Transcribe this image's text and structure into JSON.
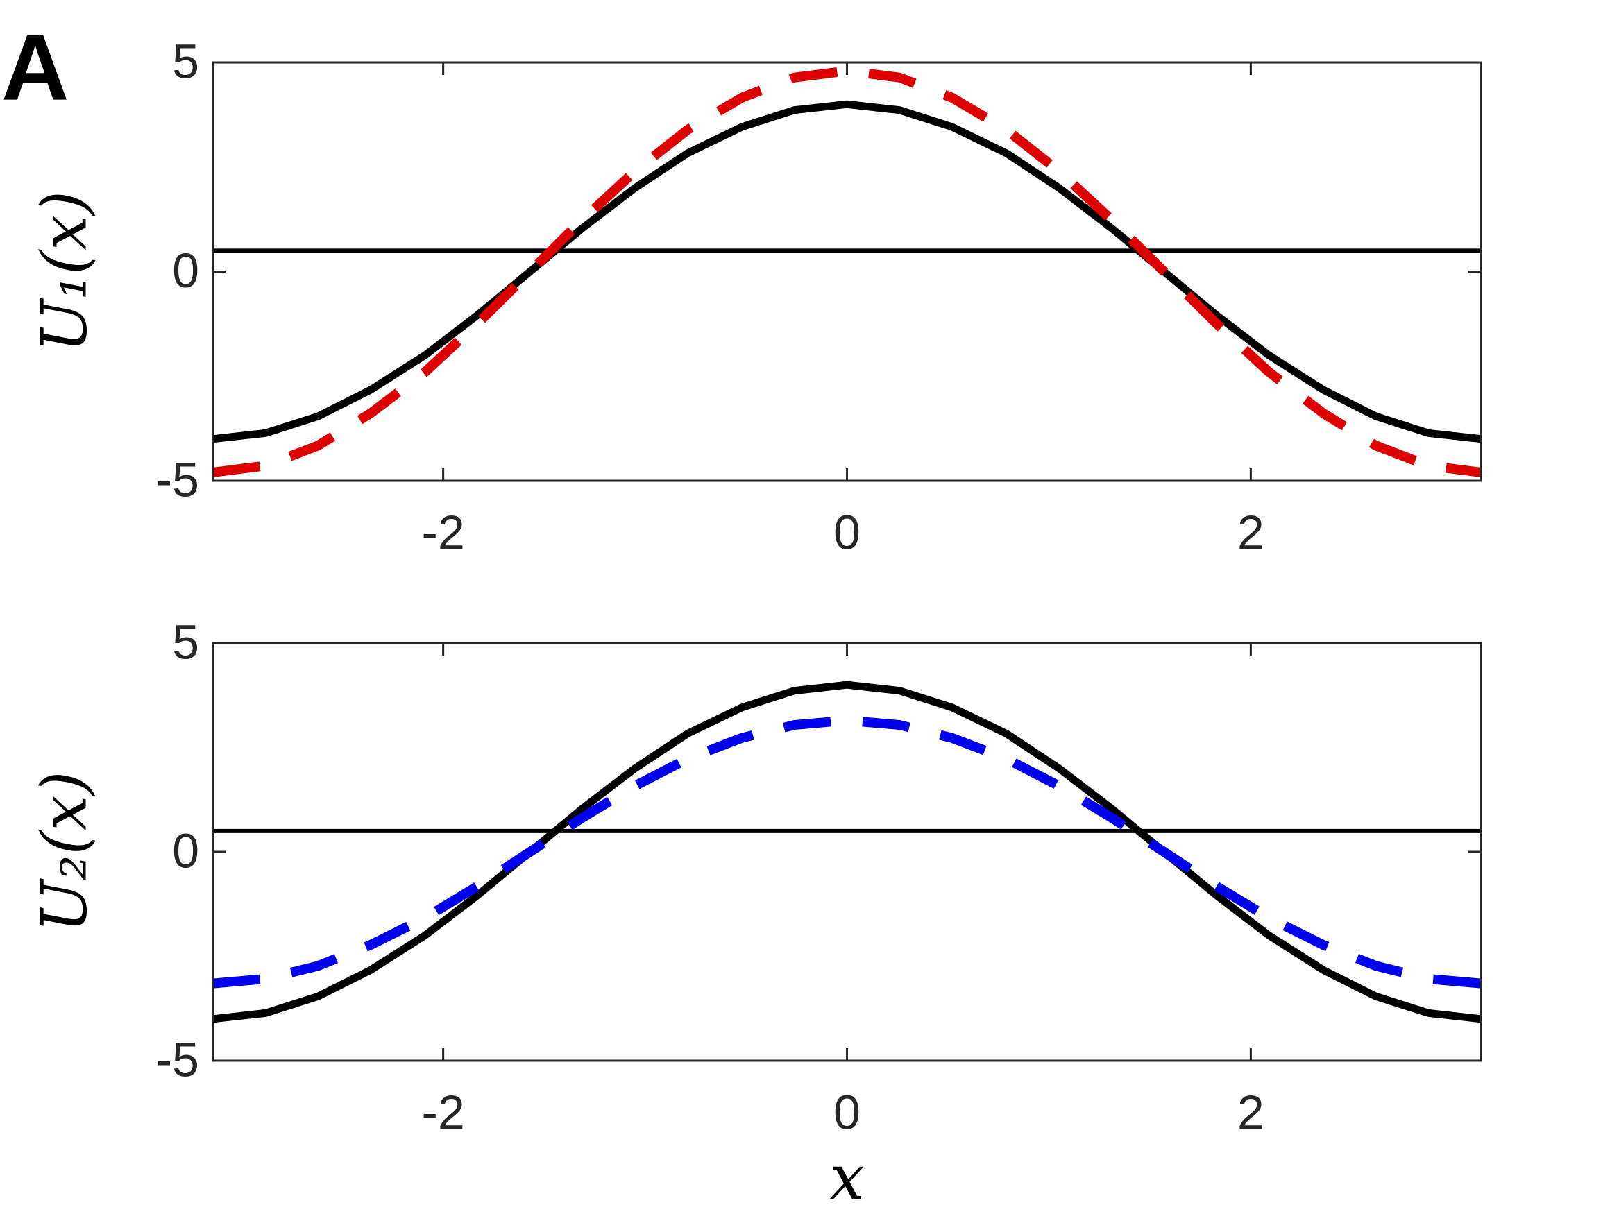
{
  "panel_label": "A",
  "chart_data": [
    {
      "type": "line",
      "ylabel": "U₁(x)",
      "x": [
        -3.14,
        -2.88,
        -2.62,
        -2.36,
        -2.09,
        -1.83,
        -1.57,
        -1.31,
        -1.05,
        -0.79,
        -0.52,
        -0.26,
        0,
        0.26,
        0.52,
        0.79,
        1.05,
        1.31,
        1.57,
        1.83,
        2.09,
        2.36,
        2.62,
        2.88,
        3.14
      ],
      "series": [
        {
          "color": "#000000",
          "style": "solid",
          "values": [
            -4,
            -3.86,
            -3.46,
            -2.83,
            -2,
            -1.04,
            0,
            1.04,
            2,
            2.83,
            3.46,
            3.86,
            4,
            3.86,
            3.46,
            2.83,
            2,
            1.04,
            0,
            -1.04,
            -2,
            -2.83,
            -3.46,
            -3.86,
            -4
          ]
        },
        {
          "color": "#dd0000",
          "style": "dashed",
          "values": [
            -4.8,
            -4.64,
            -4.16,
            -3.39,
            -2.4,
            -1.24,
            0,
            1.24,
            2.4,
            3.39,
            4.16,
            4.64,
            4.8,
            4.64,
            4.16,
            3.39,
            2.4,
            1.24,
            0,
            -1.24,
            -2.4,
            -3.39,
            -4.16,
            -4.64,
            -4.8
          ]
        }
      ],
      "hlines": [
        0.5
      ],
      "xlim": [
        -3.14,
        3.14
      ],
      "xticks": [
        -2,
        0,
        2
      ],
      "ylim": [
        -5,
        5
      ],
      "yticks": [
        -5,
        0,
        5
      ]
    },
    {
      "type": "line",
      "ylabel": "U₂(x)",
      "xlabel": "x",
      "x": [
        -3.14,
        -2.88,
        -2.62,
        -2.36,
        -2.09,
        -1.83,
        -1.57,
        -1.31,
        -1.05,
        -0.79,
        -0.52,
        -0.26,
        0,
        0.26,
        0.52,
        0.79,
        1.05,
        1.31,
        1.57,
        1.83,
        2.09,
        2.36,
        2.62,
        2.88,
        3.14
      ],
      "series": [
        {
          "color": "#000000",
          "style": "solid",
          "values": [
            -4,
            -3.86,
            -3.46,
            -2.83,
            -2,
            -1.04,
            0,
            1.04,
            2,
            2.83,
            3.46,
            3.86,
            4,
            3.86,
            3.46,
            2.83,
            2,
            1.04,
            0,
            -1.04,
            -2,
            -2.83,
            -3.46,
            -3.86,
            -4
          ]
        },
        {
          "color": "#0000ee",
          "style": "dashed",
          "values": [
            -3.15,
            -3.04,
            -2.73,
            -2.23,
            -1.58,
            -0.82,
            0,
            0.82,
            1.58,
            2.23,
            2.73,
            3.04,
            3.15,
            3.04,
            2.73,
            2.23,
            1.58,
            0.82,
            0,
            -0.82,
            -1.58,
            -2.23,
            -2.73,
            -3.04,
            -3.15
          ]
        }
      ],
      "hlines": [
        0.5
      ],
      "xlim": [
        -3.14,
        3.14
      ],
      "xticks": [
        -2,
        0,
        2
      ],
      "ylim": [
        -5,
        5
      ],
      "yticks": [
        -5,
        0,
        5
      ]
    }
  ]
}
